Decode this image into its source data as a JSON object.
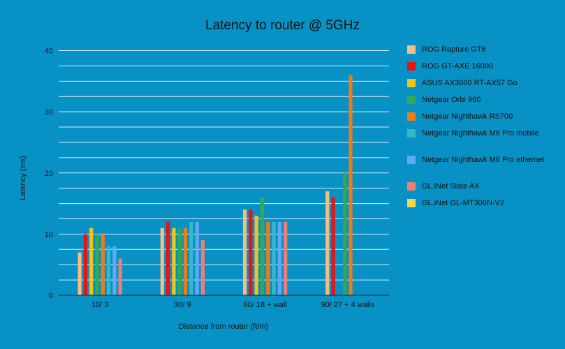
{
  "chart_data": {
    "type": "bar",
    "title": "Latency to router @ 5GHz",
    "xlabel": "Distance from router (ft/m)",
    "ylabel": "Latency (ms)",
    "ylim": [
      0,
      40
    ],
    "yticks": [
      0,
      10,
      20,
      30,
      40
    ],
    "grid": true,
    "legend_position": "right",
    "categories": [
      "10/ 3",
      "30/ 9",
      "60/ 18 + wall",
      "90/ 27 + 4 walls"
    ],
    "series": [
      {
        "name": "ROG Rapture GT6",
        "color": "#f6bd83",
        "values": [
          7,
          11,
          14,
          17
        ]
      },
      {
        "name": "ROG GT-AXE 16000",
        "color": "#ee1111",
        "values": [
          10,
          12,
          14,
          16
        ]
      },
      {
        "name": "ASUS AX3000 RT-AX57 Go",
        "color": "#f2c418",
        "values": [
          11,
          11,
          13,
          null
        ]
      },
      {
        "name": "Netgear Orbi 960",
        "color": "#34a853",
        "values": [
          10,
          11,
          16,
          20
        ]
      },
      {
        "name": "Netgear Nighthawk RS700",
        "color": "#f07b15",
        "values": [
          10,
          11,
          12,
          36
        ]
      },
      {
        "name": "Netgear Nighthawk M6 Pro mobile",
        "color": "#37b7c9",
        "values": [
          8,
          12,
          12,
          null
        ]
      },
      {
        "name": "Netgear Nighthawk M6 Pro ethernet",
        "color": "#62a8f5",
        "values": [
          8,
          12,
          12,
          null
        ]
      },
      {
        "name": "GL.iNet Slate AX",
        "color": "#ee7d73",
        "values": [
          6,
          9,
          12,
          null
        ]
      },
      {
        "name": "GL.iNet GL-MT300N-V2",
        "color": "#f7d44a",
        "values": [
          null,
          null,
          null,
          null
        ]
      }
    ]
  }
}
